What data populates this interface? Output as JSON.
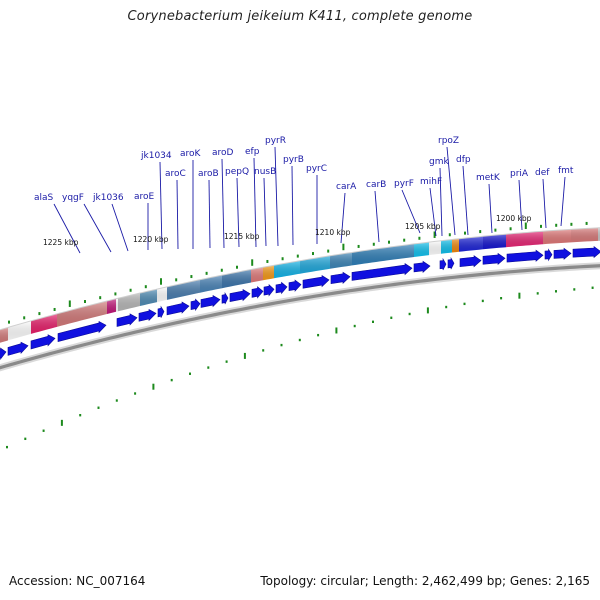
{
  "title": "Corynebacterium jeikeium K411, complete genome",
  "footer": {
    "accession_text": "Accession: NC_007164",
    "topology_text": "Topology: circular; Length: 2,462,499 bp; Genes: 2,165"
  },
  "genome": {
    "accession": "NC_007164",
    "topology": "circular",
    "length_bp": 2462499,
    "gene_count": 2165,
    "kbp_markers": [
      "1225 kbp",
      "1220 kbp",
      "1215 kbp",
      "1210 kbp",
      "1205 kbp",
      "1200 kbp"
    ]
  },
  "gene_labels": [
    "alaS",
    "yqgF",
    "jk1036",
    "aroE",
    "aroC",
    "jk1034",
    "aroK",
    "aroB",
    "aroD",
    "pepQ",
    "efp",
    "nusB",
    "pyrR",
    "pyrB",
    "pyrC",
    "carA",
    "carB",
    "pyrF",
    "mihF",
    "gmk",
    "rpoZ",
    "dfp",
    "metK",
    "priA",
    "def",
    "fmt"
  ],
  "colors": {
    "label_text": "#1a1aa6",
    "gene_arrow": "#1010e0",
    "tick_green": "#1d8a1d",
    "backbone": "#8a8a8a"
  }
}
